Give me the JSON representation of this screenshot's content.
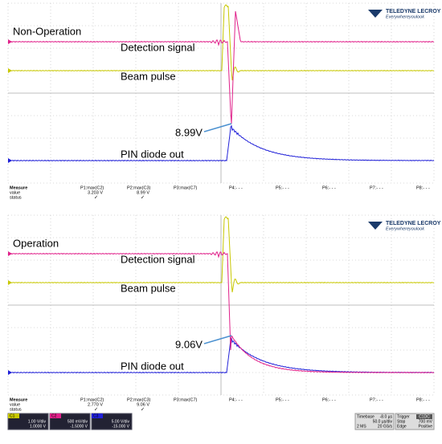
{
  "panels": [
    {
      "mode_label": "Non-Operation",
      "traces": {
        "detection": "Detection signal",
        "beam": "Beam pulse",
        "pin": "PIN diode out"
      },
      "peak_label": "8.99V",
      "logo": {
        "brand": "TELEDYNE LECROY",
        "tagline": "Everywhereyoulook"
      },
      "measure": {
        "headers": [
          "Measure",
          "value",
          "status"
        ],
        "params": [
          {
            "name": "P1:max(C2)",
            "value": "3.203 V",
            "status": "✓"
          },
          {
            "name": "P2:max(C3)",
            "value": "8.99 V",
            "status": "✓"
          },
          {
            "name": "P3:max(C7)"
          },
          {
            "name": "P4:- - -"
          },
          {
            "name": "P5:- - -"
          },
          {
            "name": "P6:- - -"
          },
          {
            "name": "P7:- - -"
          },
          {
            "name": "P8:- - -"
          }
        ]
      }
    },
    {
      "mode_label": "Operation",
      "traces": {
        "detection": "Detection signal",
        "beam": "Beam pulse",
        "pin": "PIN diode out"
      },
      "peak_label": "9.06V",
      "logo": {
        "brand": "TELEDYNE LECROY",
        "tagline": "Everywhereyoulook"
      },
      "measure": {
        "headers": [
          "Measure",
          "value",
          "status"
        ],
        "params": [
          {
            "name": "P1:max(C2)",
            "value": "2.770 V",
            "status": "✓"
          },
          {
            "name": "P2:max(C3)",
            "value": "9.06 V",
            "status": "✓"
          },
          {
            "name": "P3:max(C7)"
          },
          {
            "name": "P4:- - -"
          },
          {
            "name": "P5:- - -"
          },
          {
            "name": "P6:- - -"
          },
          {
            "name": "P7:- - -"
          },
          {
            "name": "P8:- - -"
          }
        ]
      }
    }
  ],
  "status_bar": {
    "channels": [
      {
        "name": "C1",
        "scale": "1.00 V/div",
        "offset": "1.0000 V"
      },
      {
        "name": "C2",
        "scale": "500 mV/div",
        "offset": "-1.5000 V"
      },
      {
        "name": "C3",
        "scale": "5.00 V/div",
        "offset": "-15.000 V"
      }
    ],
    "timebase": {
      "label": "Timebase",
      "delay": "-8.0 µs",
      "div": "50.0 µs/div",
      "samples": "2 MS",
      "rate": "20 GS/s"
    },
    "trigger": {
      "label": "Trigger",
      "channel": "C1DC",
      "mode": "Stop",
      "level": "700 mV",
      "type": "Edge",
      "slope": "Positive"
    }
  }
}
